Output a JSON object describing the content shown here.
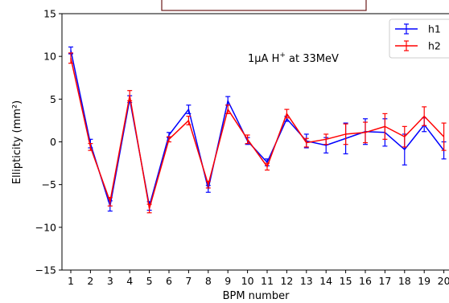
{
  "chart_data": {
    "type": "line",
    "xlabel": "BPM number",
    "ylabel": "Ellipticity (mm²)",
    "ylim": [
      -15,
      15
    ],
    "yticks": [
      -15,
      -10,
      -5,
      0,
      5,
      10,
      15
    ],
    "ytick_labels": [
      "−15",
      "−10",
      "−5",
      "0",
      "5",
      "10",
      "15"
    ],
    "x": [
      1,
      2,
      3,
      4,
      5,
      6,
      7,
      8,
      9,
      10,
      11,
      12,
      13,
      14,
      15,
      16,
      17,
      18,
      19,
      20
    ],
    "annotation": {
      "text_main": "1μA H",
      "text_sup": "+",
      "text_rest": " at 33MeV"
    },
    "legend_position": "top-right",
    "series": [
      {
        "name": "h1",
        "color": "#0000ff",
        "values": [
          10.7,
          -0.2,
          -7.5,
          5.0,
          -7.5,
          0.8,
          3.8,
          -5.5,
          4.8,
          0.1,
          -2.4,
          2.7,
          0.1,
          -0.4,
          0.4,
          1.2,
          1.1,
          -0.9,
          2.0,
          -1.0
        ],
        "errors": [
          0.4,
          0.5,
          0.6,
          0.4,
          0.5,
          0.3,
          0.5,
          0.4,
          0.5,
          0.4,
          0.4,
          0.3,
          0.8,
          0.9,
          1.8,
          1.5,
          1.6,
          1.8,
          0.8,
          1.0
        ]
      },
      {
        "name": "h2",
        "color": "#ff0000",
        "values": [
          9.8,
          -0.6,
          -7.0,
          5.4,
          -7.8,
          0.3,
          2.5,
          -5.0,
          3.8,
          0.3,
          -2.9,
          3.3,
          -0.1,
          0.3,
          0.9,
          1.1,
          1.8,
          0.6,
          3.0,
          0.6
        ],
        "errors": [
          0.6,
          0.4,
          0.5,
          0.6,
          0.5,
          0.3,
          0.5,
          0.4,
          0.5,
          0.5,
          0.4,
          0.5,
          0.5,
          0.6,
          1.2,
          1.2,
          1.5,
          1.2,
          1.1,
          1.6
        ]
      }
    ]
  }
}
